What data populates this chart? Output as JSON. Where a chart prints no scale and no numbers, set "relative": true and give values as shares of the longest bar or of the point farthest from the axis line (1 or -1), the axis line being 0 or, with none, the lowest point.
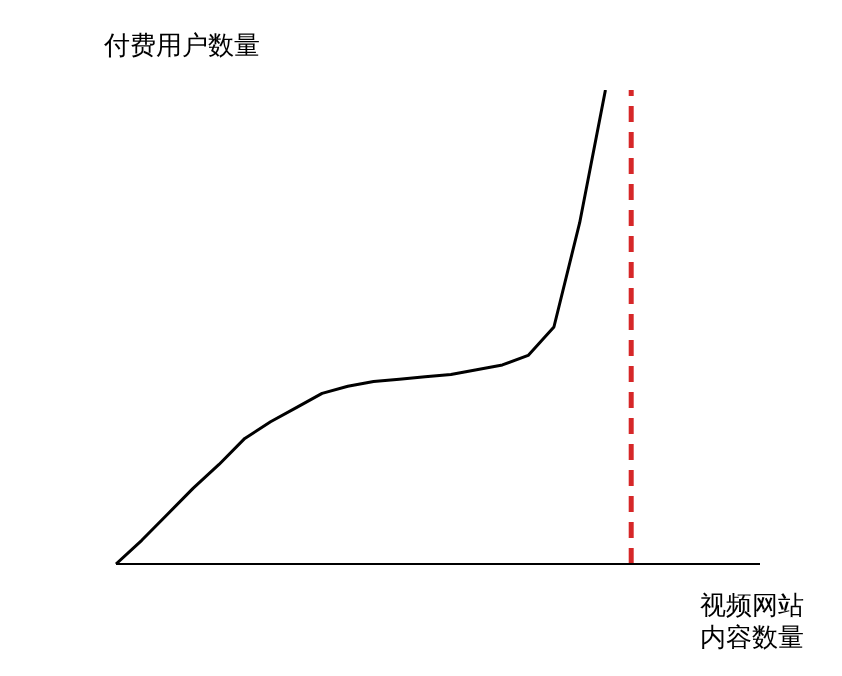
{
  "chart_data": {
    "type": "line",
    "relative": true,
    "ylabel": "付费用户数量",
    "xlabel": "视频网站内容数量",
    "categories": [
      null,
      null,
      null,
      null,
      null,
      null,
      null,
      null,
      null,
      null,
      null,
      null,
      null,
      null,
      null,
      null,
      null,
      null,
      null,
      null,
      null,
      null,
      null,
      null,
      null,
      null
    ],
    "series": [
      {
        "color": "#000000",
        "values": [
          0,
          0.05,
          0.105,
          0.16,
          0.21,
          0.265,
          0.3,
          0.33,
          0.36,
          0.375,
          0.385,
          0.39,
          0.395,
          0.4,
          0.41,
          0.42,
          0.44,
          0.5,
          0.72,
          1,
          null,
          null,
          null,
          null,
          null,
          null
        ]
      }
    ],
    "grid": false,
    "marker": "none",
    "line_style": "solid",
    "ref_lines": [
      {
        "axis": "x",
        "color": "#d62728",
        "line_style": "dashed"
      }
    ]
  }
}
